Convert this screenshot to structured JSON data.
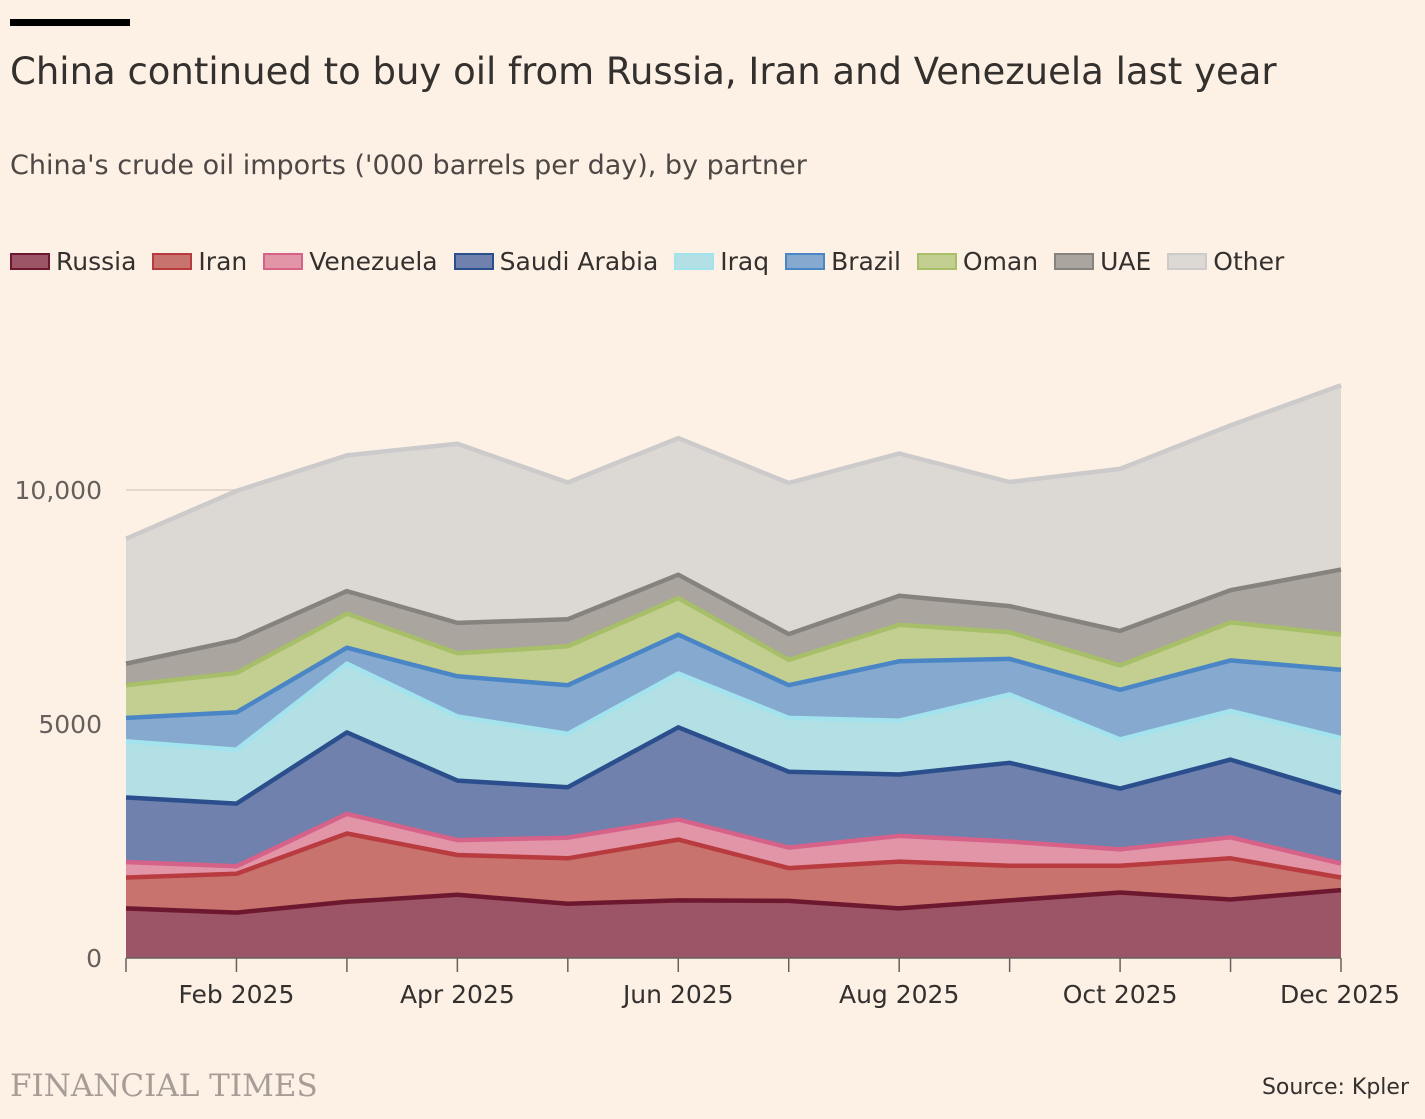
{
  "title": "China continued to buy oil from Russia, Iran and Venezuela last year",
  "subtitle": "China's crude oil imports ('000 barrels per day), by partner",
  "source": "Source: Kpler",
  "brand": "FINANCIAL TIMES",
  "chart_data": {
    "type": "area",
    "stacked": true,
    "x": [
      "2025-01",
      "2025-02",
      "2025-03",
      "2025-04",
      "2025-05",
      "2025-06",
      "2025-07",
      "2025-08",
      "2025-09",
      "2025-10",
      "2025-11",
      "2025-12"
    ],
    "x_tick_labels": [
      "",
      "Feb 2025",
      "",
      "Apr 2025",
      "",
      "Jun 2025",
      "",
      "Aug 2025",
      "",
      "Oct 2025",
      "",
      "Dec 2025"
    ],
    "ylim": [
      0,
      12500
    ],
    "yticks": [
      0,
      5000,
      10000
    ],
    "ytick_labels": [
      "0",
      "5000",
      "10,000"
    ],
    "grid": true,
    "legend_position": "top-left",
    "series": [
      {
        "name": "Russia",
        "fill": "#9b5566",
        "line": "#6e1830",
        "values": [
          1060,
          970,
          1200,
          1350,
          1160,
          1230,
          1220,
          1060,
          1230,
          1400,
          1250,
          1450
        ]
      },
      {
        "name": "Iran",
        "fill": "#c8736e",
        "line": "#b83b3f",
        "values": [
          660,
          830,
          1460,
          850,
          970,
          1300,
          700,
          1000,
          740,
          570,
          880,
          270
        ]
      },
      {
        "name": "Venezuela",
        "fill": "#e395a8",
        "line": "#d6628a",
        "values": [
          330,
          160,
          420,
          320,
          440,
          430,
          440,
          550,
          520,
          350,
          450,
          300
        ]
      },
      {
        "name": "Saudi Arabia",
        "fill": "#6f81ac",
        "line": "#2b4f8c",
        "values": [
          1380,
          1340,
          1740,
          1270,
          1080,
          1970,
          1620,
          1310,
          1680,
          1300,
          1660,
          1510
        ]
      },
      {
        "name": "Iraq",
        "fill": "#b3e0e5",
        "line": "#a3e3ed",
        "values": [
          1200,
          1150,
          1470,
          1370,
          1140,
          1150,
          1150,
          1150,
          1460,
          1050,
          1040,
          1170
        ]
      },
      {
        "name": "Brazil",
        "fill": "#86a9d0",
        "line": "#4a86c5",
        "values": [
          500,
          800,
          340,
          860,
          1040,
          830,
          700,
          1270,
          760,
          1060,
          1080,
          1460
        ]
      },
      {
        "name": "Oman",
        "fill": "#c3cf91",
        "line": "#a6bf68",
        "values": [
          700,
          840,
          730,
          490,
          830,
          780,
          540,
          780,
          570,
          520,
          810,
          750
        ]
      },
      {
        "name": "UAE",
        "fill": "#aaa59f",
        "line": "#86827e",
        "values": [
          460,
          700,
          480,
          650,
          580,
          500,
          550,
          620,
          560,
          740,
          690,
          1390
        ]
      },
      {
        "name": "Other",
        "fill": "#dcd9d5",
        "line": "#cccaca",
        "values": [
          2670,
          3190,
          2900,
          3830,
          2920,
          2920,
          3230,
          3040,
          2650,
          3460,
          3520,
          3940
        ]
      }
    ]
  }
}
